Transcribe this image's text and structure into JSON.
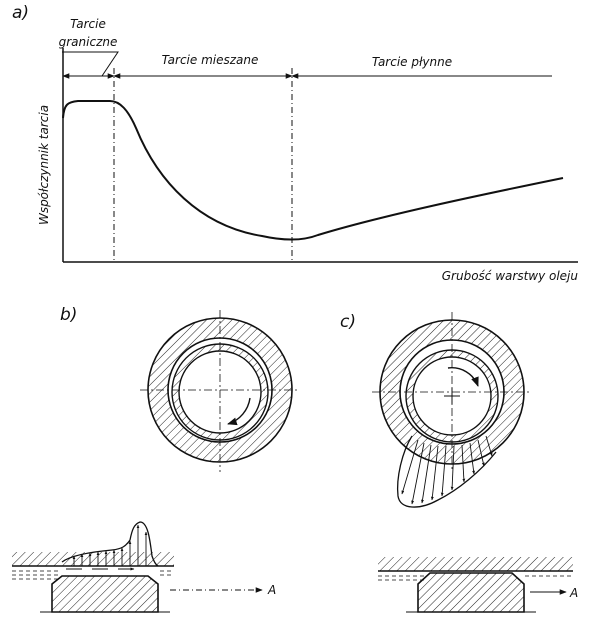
{
  "panel_a": {
    "letter": "a)",
    "zones": {
      "boundary_line1": "Tarcie",
      "boundary_line2": "graniczne",
      "mixed": "Tarcie mieszane",
      "fluid": "Tarcie płynne"
    },
    "ylabel": "Współczynnik tarcia",
    "xlabel": "Grubość warstwy oleju"
  },
  "panel_b": {
    "letter": "b)",
    "arrow_label": "A"
  },
  "panel_c": {
    "letter": "c)",
    "arrow_label": "A"
  }
}
